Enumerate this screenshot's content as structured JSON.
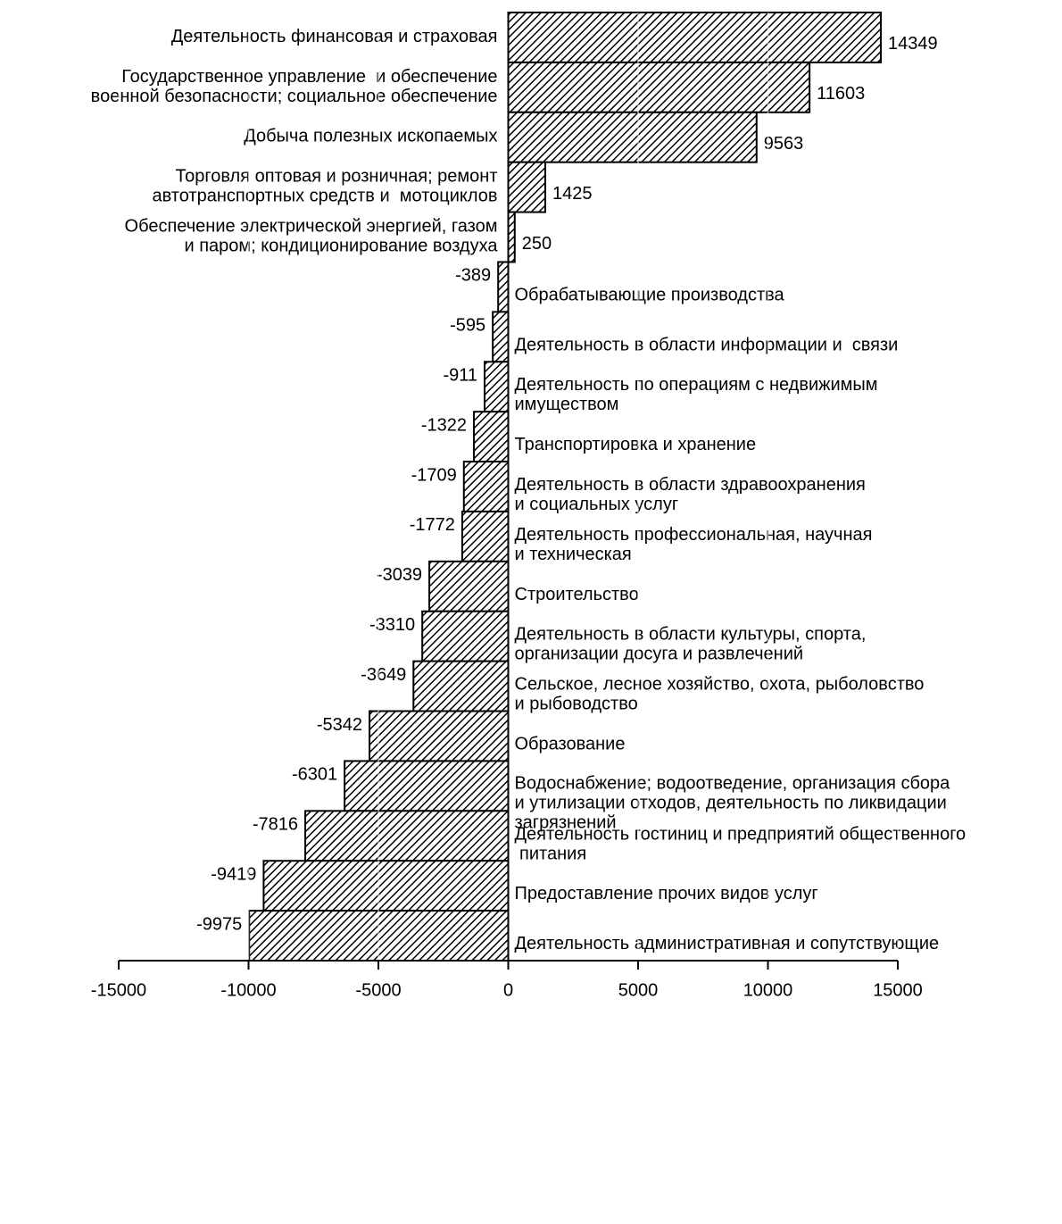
{
  "chart_data": {
    "type": "barh",
    "categories": [
      [
        "Деятельность финансовая и страховая"
      ],
      [
        "Государственное управление  и обеспечение",
        "военной безопасности; социальное обеспечение"
      ],
      [
        "Добыча полезных ископаемых"
      ],
      [
        "Торговля оптовая и розничная; ремонт",
        "автотранспортных средств и  мотоциклов"
      ],
      [
        "Обеспечение электрической энергией, газом",
        "и паром; кондиционирование воздуха"
      ],
      [
        "Обрабатывающие производства"
      ],
      [
        "Деятельность в области информации и  связи"
      ],
      [
        "Деятельность по операциям с недвижимым",
        "имуществом"
      ],
      [
        "Транспортировка и хранение"
      ],
      [
        "Деятельность в области здравоохранения",
        "и социальных услуг"
      ],
      [
        "Деятельность профессиональная, научная",
        "и техническая"
      ],
      [
        "Строительство"
      ],
      [
        "Деятельность в области культуры, спорта,",
        "организации досуга и развлечений"
      ],
      [
        "Сельское, лесное хозяйство, охота, рыболовство",
        "и рыбоводство"
      ],
      [
        "Образование"
      ],
      [
        "Водоснабжение; водоотведение, организация сбора",
        "и утилизации отходов, деятельность по ликвидации",
        "загрязнений"
      ],
      [
        "Деятельность гостиниц и предприятий общественного",
        " питания"
      ],
      [
        "Предоставление прочих видов услуг"
      ],
      [
        "Деятельность административная и сопутствующие"
      ]
    ],
    "values": [
      14349,
      11603,
      9563,
      1425,
      250,
      -389,
      -595,
      -911,
      -1322,
      -1709,
      -1772,
      -3039,
      -3310,
      -3649,
      -5342,
      -6301,
      -7816,
      -9419,
      -9975
    ],
    "color": "#000000",
    "xlim": [
      -15000,
      15000
    ],
    "xticks": [
      -15000,
      -10000,
      -5000,
      0,
      5000,
      10000,
      15000
    ],
    "grid": true
  }
}
